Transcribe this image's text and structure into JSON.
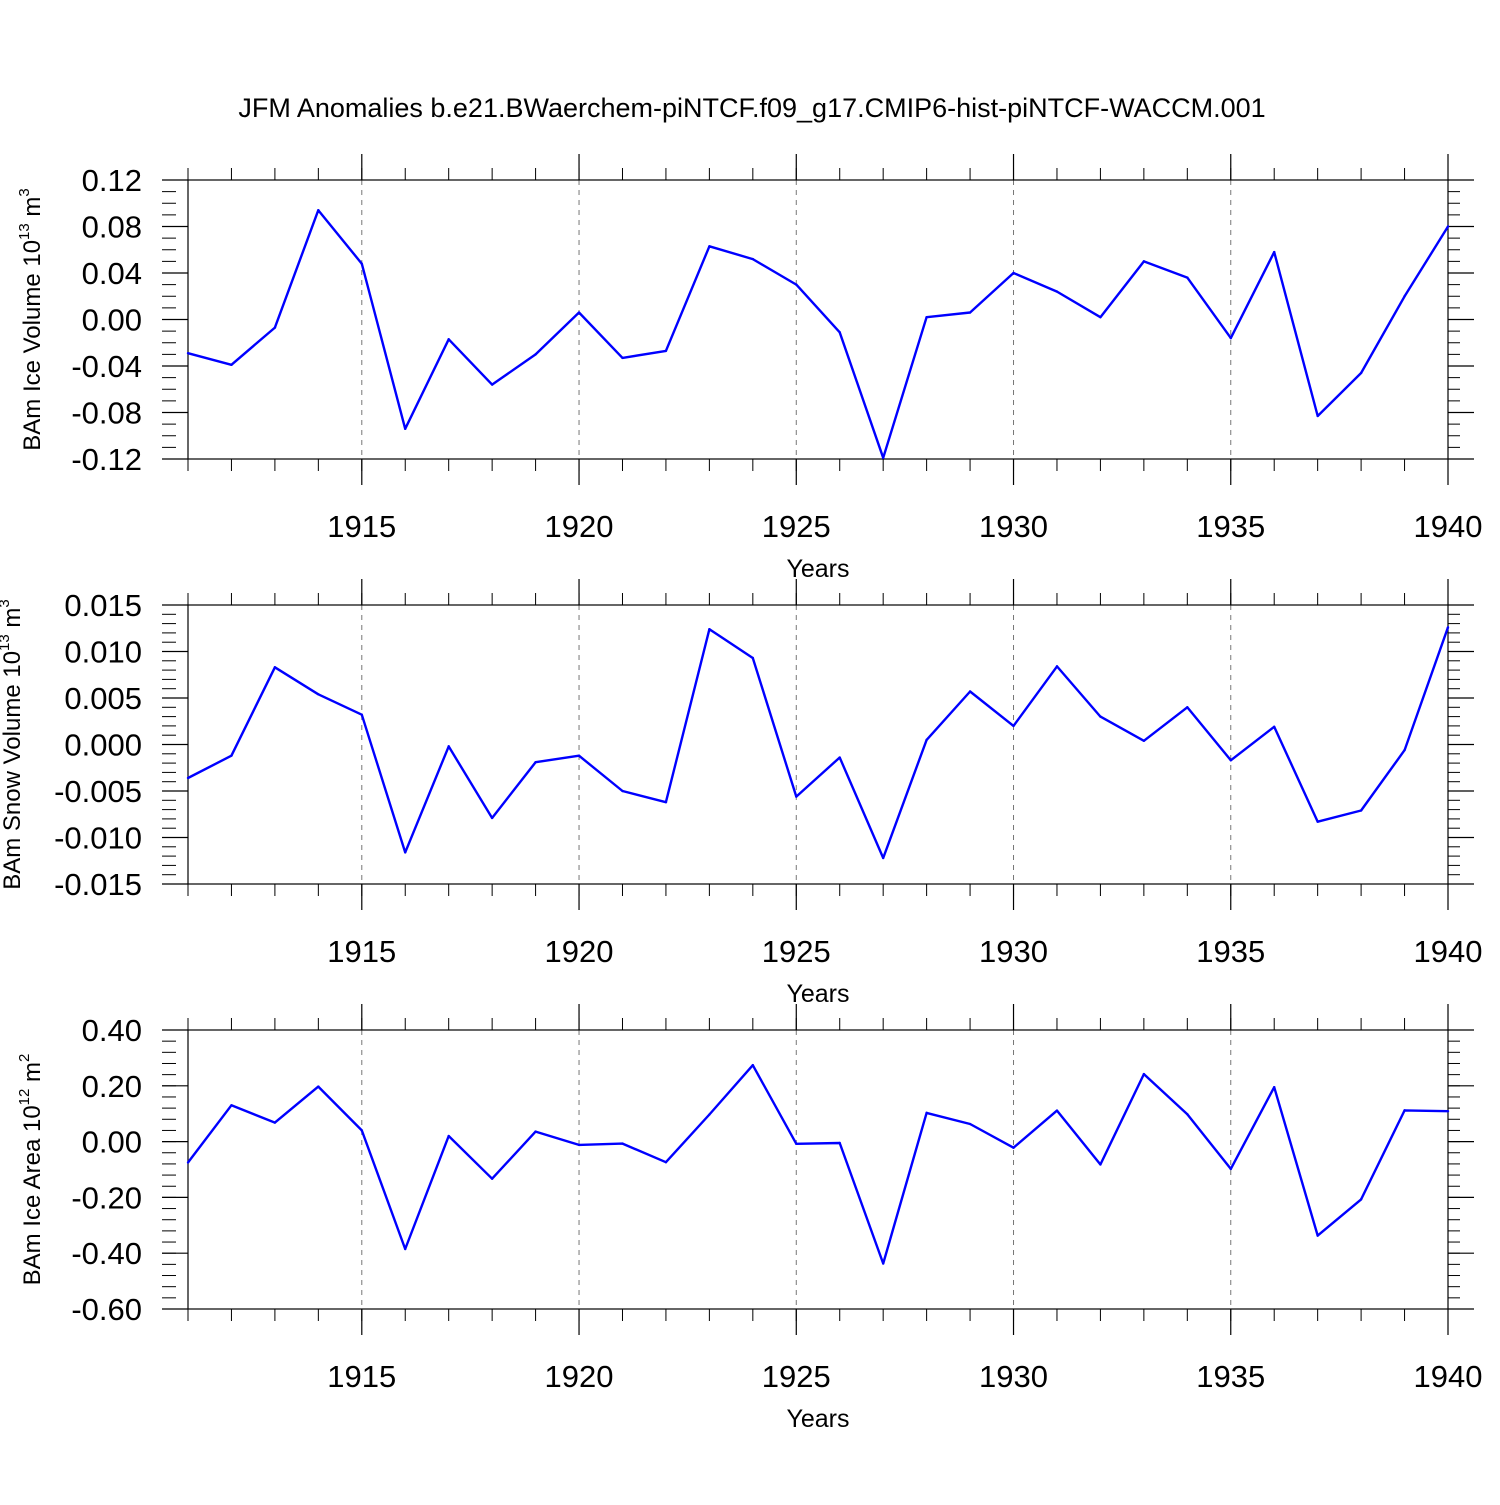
{
  "title": "JFM Anomalies b.e21.BWaerchem-piNTCF.f09_g17.CMIP6-hist-piNTCF-WACCM.001",
  "colors": {
    "series": "#0000ff",
    "frame": "#000000",
    "grid": "#777777"
  },
  "chart_data": [
    {
      "type": "line",
      "title": "",
      "xlabel": "Years",
      "ylabel_base": "BAm Ice Volume 10",
      "ylabel_exp": "13",
      "ylabel_unit": " m",
      "ylabel_unit_exp": "3",
      "xlim": [
        1911,
        1940
      ],
      "ylim": [
        -0.12,
        0.12
      ],
      "x_ticks": [
        "1915",
        "1920",
        "1925",
        "1930",
        "1935",
        "1940"
      ],
      "y_ticks": [
        "0.12",
        "0.08",
        "0.04",
        "0.00",
        "-0.04",
        "-0.08",
        "-0.12"
      ],
      "y_tick_values": [
        0.12,
        0.08,
        0.04,
        0.0,
        -0.04,
        -0.08,
        -0.12
      ],
      "x_minor_step": 1,
      "y_minor_step": 0.01,
      "x": [
        1911,
        1912,
        1913,
        1914,
        1915,
        1916,
        1917,
        1918,
        1919,
        1920,
        1921,
        1922,
        1923,
        1924,
        1925,
        1926,
        1927,
        1928,
        1929,
        1930,
        1931,
        1932,
        1933,
        1934,
        1935,
        1936,
        1937,
        1938,
        1939,
        1940
      ],
      "values": [
        -0.029,
        -0.039,
        -0.007,
        0.094,
        0.048,
        -0.094,
        -0.017,
        -0.056,
        -0.03,
        0.006,
        -0.033,
        -0.027,
        0.063,
        0.052,
        0.03,
        -0.011,
        -0.119,
        0.002,
        0.006,
        0.04,
        0.024,
        0.002,
        0.05,
        0.036,
        -0.016,
        0.058,
        -0.083,
        -0.046,
        0.02,
        0.08
      ]
    },
    {
      "type": "line",
      "title": "",
      "xlabel": "Years",
      "ylabel_base": "BAm Snow Volume 10",
      "ylabel_exp": "13",
      "ylabel_unit": " m",
      "ylabel_unit_exp": "3",
      "xlim": [
        1911,
        1940
      ],
      "ylim": [
        -0.015,
        0.015
      ],
      "x_ticks": [
        "1915",
        "1920",
        "1925",
        "1930",
        "1935",
        "1940"
      ],
      "y_ticks": [
        "0.015",
        "0.010",
        "0.005",
        "0.000",
        "-0.005",
        "-0.010",
        "-0.015"
      ],
      "y_tick_values": [
        0.015,
        0.01,
        0.005,
        0.0,
        -0.005,
        -0.01,
        -0.015
      ],
      "x_minor_step": 1,
      "y_minor_step": 0.001,
      "x": [
        1911,
        1912,
        1913,
        1914,
        1915,
        1916,
        1917,
        1918,
        1919,
        1920,
        1921,
        1922,
        1923,
        1924,
        1925,
        1926,
        1927,
        1928,
        1929,
        1930,
        1931,
        1932,
        1933,
        1934,
        1935,
        1936,
        1937,
        1938,
        1939,
        1940
      ],
      "values": [
        -0.0036,
        -0.0012,
        0.0083,
        0.0054,
        0.0032,
        -0.0116,
        -0.0002,
        -0.0079,
        -0.0019,
        -0.0012,
        -0.005,
        -0.0062,
        0.0124,
        0.0093,
        -0.0056,
        -0.0014,
        -0.0122,
        0.0005,
        0.0057,
        0.002,
        0.0084,
        0.003,
        0.0004,
        0.004,
        -0.0017,
        0.0019,
        -0.0083,
        -0.0071,
        -0.0006,
        0.0126
      ]
    },
    {
      "type": "line",
      "title": "",
      "xlabel": "Years",
      "ylabel_base": "BAm Ice Area 10",
      "ylabel_exp": "12",
      "ylabel_unit": " m",
      "ylabel_unit_exp": "2",
      "xlim": [
        1911,
        1940
      ],
      "ylim": [
        -0.6,
        0.4
      ],
      "x_ticks": [
        "1915",
        "1920",
        "1925",
        "1930",
        "1935",
        "1940"
      ],
      "y_ticks": [
        "0.40",
        "0.20",
        "0.00",
        "-0.20",
        "-0.40",
        "-0.60"
      ],
      "y_tick_values": [
        0.4,
        0.2,
        0.0,
        -0.2,
        -0.4,
        -0.6
      ],
      "x_minor_step": 1,
      "y_minor_step": 0.04,
      "x": [
        1911,
        1912,
        1913,
        1914,
        1915,
        1916,
        1917,
        1918,
        1919,
        1920,
        1921,
        1922,
        1923,
        1924,
        1925,
        1926,
        1927,
        1928,
        1929,
        1930,
        1931,
        1932,
        1933,
        1934,
        1935,
        1936,
        1937,
        1938,
        1939,
        1940
      ],
      "values": [
        -0.075,
        0.13,
        0.068,
        0.197,
        0.04,
        -0.385,
        0.02,
        -0.133,
        0.036,
        -0.012,
        -0.007,
        -0.074,
        0.097,
        0.274,
        -0.008,
        -0.005,
        -0.437,
        0.103,
        0.063,
        -0.022,
        0.111,
        -0.082,
        0.242,
        0.098,
        -0.098,
        0.195,
        -0.337,
        -0.207,
        0.112,
        0.109
      ]
    }
  ]
}
